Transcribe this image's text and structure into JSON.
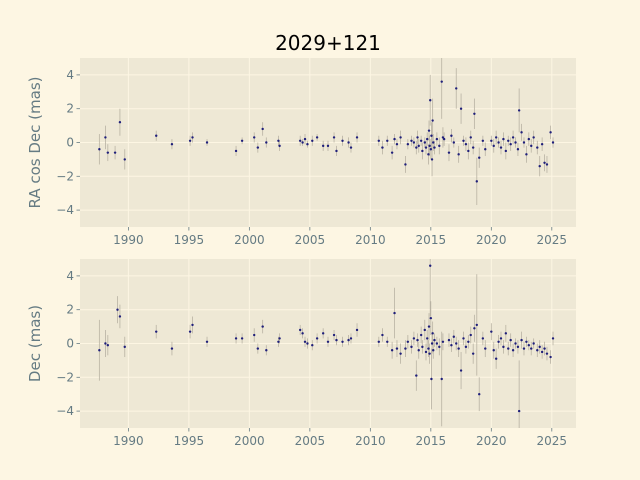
{
  "title": "2029+121",
  "colors": {
    "figure_bg": "#fdf6e3",
    "axes_bg": "#eee8d5",
    "grid": "#fdf6e3",
    "marker": "#1f1f7a",
    "errorbar": "#b8b2a3",
    "tick_text": "#657b83"
  },
  "chart_data": [
    {
      "type": "scatter",
      "ylabel": "RA cos Dec (mas)",
      "xlim": [
        1986.0,
        2027.0
      ],
      "ylim": [
        -5.0,
        5.0
      ],
      "xticks": [
        1990,
        1995,
        2000,
        2005,
        2010,
        2015,
        2020,
        2025
      ],
      "yticks": [
        -4,
        -2,
        0,
        2,
        4
      ],
      "grid": true,
      "points": [
        [
          1987.6,
          -0.4,
          0.9
        ],
        [
          1988.1,
          0.3,
          0.7
        ],
        [
          1988.3,
          -0.6,
          0.5
        ],
        [
          1988.9,
          -0.6,
          0.4
        ],
        [
          1989.3,
          1.2,
          0.8
        ],
        [
          1989.7,
          -1.0,
          0.6
        ],
        [
          1992.3,
          0.4,
          0.3
        ],
        [
          1993.6,
          -0.1,
          0.3
        ],
        [
          1995.1,
          0.1,
          0.3
        ],
        [
          1995.3,
          0.3,
          0.3
        ],
        [
          1996.5,
          0.0,
          0.2
        ],
        [
          1998.9,
          -0.5,
          0.3
        ],
        [
          1999.4,
          0.1,
          0.2
        ],
        [
          2000.4,
          0.3,
          0.3
        ],
        [
          2000.7,
          -0.3,
          0.3
        ],
        [
          2001.1,
          0.8,
          0.4
        ],
        [
          2001.4,
          0.0,
          0.3
        ],
        [
          2002.4,
          0.1,
          0.3
        ],
        [
          2002.5,
          -0.2,
          0.3
        ],
        [
          2004.2,
          0.1,
          0.3
        ],
        [
          2004.4,
          0.0,
          0.2
        ],
        [
          2004.6,
          0.2,
          0.3
        ],
        [
          2004.8,
          -0.1,
          0.2
        ],
        [
          2005.2,
          0.1,
          0.3
        ],
        [
          2005.6,
          0.3,
          0.2
        ],
        [
          2006.1,
          -0.2,
          0.3
        ],
        [
          2006.5,
          -0.2,
          0.3
        ],
        [
          2007.0,
          0.3,
          0.3
        ],
        [
          2007.2,
          -0.5,
          0.3
        ],
        [
          2007.7,
          0.1,
          0.3
        ],
        [
          2008.2,
          0.0,
          0.3
        ],
        [
          2008.4,
          -0.3,
          0.3
        ],
        [
          2008.9,
          0.3,
          0.3
        ],
        [
          2010.7,
          0.1,
          0.3
        ],
        [
          2011.0,
          -0.3,
          0.4
        ],
        [
          2011.4,
          0.1,
          0.3
        ],
        [
          2011.8,
          -0.6,
          0.4
        ],
        [
          2012.0,
          0.2,
          0.3
        ],
        [
          2012.2,
          -0.1,
          0.3
        ],
        [
          2012.5,
          0.3,
          0.4
        ],
        [
          2012.9,
          -1.3,
          0.5
        ],
        [
          2013.1,
          -0.1,
          0.3
        ],
        [
          2013.4,
          0.1,
          0.3
        ],
        [
          2013.6,
          0.0,
          0.3
        ],
        [
          2013.8,
          -0.3,
          0.4
        ],
        [
          2013.9,
          0.3,
          0.4
        ],
        [
          2014.0,
          -0.2,
          0.4
        ],
        [
          2014.2,
          0.1,
          0.3
        ],
        [
          2014.3,
          -0.5,
          0.5
        ],
        [
          2014.5,
          0.0,
          0.3
        ],
        [
          2014.6,
          -0.3,
          0.4
        ],
        [
          2014.7,
          0.2,
          0.4
        ],
        [
          2014.8,
          -0.7,
          0.6
        ],
        [
          2014.85,
          0.7,
          0.6
        ],
        [
          2014.9,
          -0.2,
          0.6
        ],
        [
          2014.95,
          2.5,
          1.5
        ],
        [
          2015.0,
          -0.4,
          0.6
        ],
        [
          2015.05,
          0.4,
          0.8
        ],
        [
          2015.1,
          -1.0,
          1.0
        ],
        [
          2015.15,
          1.3,
          1.3
        ],
        [
          2015.2,
          0.0,
          0.5
        ],
        [
          2015.3,
          -0.3,
          0.4
        ],
        [
          2015.5,
          0.2,
          0.4
        ],
        [
          2015.7,
          -0.2,
          0.5
        ],
        [
          2015.9,
          3.6,
          2.2
        ],
        [
          2016.0,
          0.3,
          0.6
        ],
        [
          2016.1,
          0.2,
          0.4
        ],
        [
          2016.5,
          -0.6,
          0.5
        ],
        [
          2016.7,
          0.4,
          0.4
        ],
        [
          2016.9,
          0.0,
          0.3
        ],
        [
          2017.1,
          3.2,
          1.2
        ],
        [
          2017.3,
          -0.7,
          0.5
        ],
        [
          2017.5,
          2.0,
          0.9
        ],
        [
          2017.7,
          0.1,
          0.3
        ],
        [
          2017.9,
          -0.1,
          0.4
        ],
        [
          2018.1,
          -0.5,
          0.5
        ],
        [
          2018.3,
          0.3,
          0.4
        ],
        [
          2018.5,
          -0.3,
          0.4
        ],
        [
          2018.6,
          1.7,
          0.9
        ],
        [
          2018.8,
          -2.3,
          1.4
        ],
        [
          2019.0,
          -0.9,
          0.6
        ],
        [
          2019.3,
          0.1,
          0.3
        ],
        [
          2019.5,
          -0.4,
          0.4
        ],
        [
          2020.0,
          0.1,
          0.3
        ],
        [
          2020.2,
          -0.2,
          0.4
        ],
        [
          2020.4,
          0.3,
          0.4
        ],
        [
          2020.6,
          0.0,
          0.3
        ],
        [
          2020.8,
          -0.3,
          0.4
        ],
        [
          2021.0,
          0.2,
          0.4
        ],
        [
          2021.2,
          -0.5,
          0.5
        ],
        [
          2021.4,
          0.1,
          0.3
        ],
        [
          2021.6,
          -0.1,
          0.4
        ],
        [
          2021.8,
          0.3,
          0.4
        ],
        [
          2022.0,
          0.0,
          0.3
        ],
        [
          2022.2,
          -0.4,
          0.4
        ],
        [
          2022.3,
          1.9,
          1.3
        ],
        [
          2022.5,
          0.6,
          0.5
        ],
        [
          2022.7,
          0.0,
          0.3
        ],
        [
          2022.9,
          -0.7,
          0.5
        ],
        [
          2023.1,
          0.2,
          0.4
        ],
        [
          2023.3,
          -0.2,
          0.4
        ],
        [
          2023.5,
          0.3,
          0.4
        ],
        [
          2023.8,
          -0.3,
          0.4
        ],
        [
          2024.0,
          -1.4,
          0.6
        ],
        [
          2024.2,
          -0.1,
          0.4
        ],
        [
          2024.4,
          -1.2,
          0.5
        ],
        [
          2024.6,
          -1.3,
          0.5
        ],
        [
          2024.9,
          0.6,
          0.4
        ],
        [
          2025.1,
          0.0,
          0.3
        ]
      ]
    },
    {
      "type": "scatter",
      "ylabel": "Dec (mas)",
      "xlim": [
        1986.0,
        2027.0
      ],
      "ylim": [
        -5.0,
        5.0
      ],
      "xticks": [
        1990,
        1995,
        2000,
        2005,
        2010,
        2015,
        2020,
        2025
      ],
      "yticks": [
        -4,
        -2,
        0,
        2,
        4
      ],
      "grid": true,
      "points": [
        [
          1987.6,
          -0.4,
          1.8
        ],
        [
          1988.1,
          0.0,
          0.8
        ],
        [
          1988.3,
          -0.1,
          0.6
        ],
        [
          1989.1,
          2.0,
          0.8
        ],
        [
          1989.3,
          1.6,
          0.7
        ],
        [
          1989.7,
          -0.2,
          0.6
        ],
        [
          1992.3,
          0.7,
          0.4
        ],
        [
          1993.6,
          -0.3,
          0.4
        ],
        [
          1995.1,
          0.7,
          0.4
        ],
        [
          1995.3,
          1.1,
          0.5
        ],
        [
          1996.5,
          0.1,
          0.3
        ],
        [
          1998.9,
          0.3,
          0.3
        ],
        [
          1999.4,
          0.3,
          0.3
        ],
        [
          2000.4,
          0.5,
          0.4
        ],
        [
          2000.7,
          -0.3,
          0.3
        ],
        [
          2001.1,
          1.0,
          0.4
        ],
        [
          2001.4,
          -0.4,
          0.3
        ],
        [
          2002.4,
          0.1,
          0.3
        ],
        [
          2002.5,
          0.3,
          0.3
        ],
        [
          2004.2,
          0.8,
          0.3
        ],
        [
          2004.4,
          0.6,
          0.3
        ],
        [
          2004.6,
          0.1,
          0.3
        ],
        [
          2004.8,
          0.0,
          0.3
        ],
        [
          2005.2,
          -0.1,
          0.3
        ],
        [
          2005.6,
          0.3,
          0.3
        ],
        [
          2006.1,
          0.6,
          0.3
        ],
        [
          2006.5,
          0.1,
          0.3
        ],
        [
          2007.0,
          0.5,
          0.3
        ],
        [
          2007.2,
          0.2,
          0.3
        ],
        [
          2007.7,
          0.1,
          0.3
        ],
        [
          2008.2,
          0.2,
          0.3
        ],
        [
          2008.4,
          0.3,
          0.3
        ],
        [
          2008.9,
          0.8,
          0.4
        ],
        [
          2010.7,
          0.1,
          0.3
        ],
        [
          2011.0,
          0.5,
          0.4
        ],
        [
          2011.4,
          0.1,
          0.3
        ],
        [
          2011.8,
          -0.4,
          0.5
        ],
        [
          2012.0,
          1.8,
          1.5
        ],
        [
          2012.2,
          -0.3,
          0.5
        ],
        [
          2012.5,
          -0.6,
          0.6
        ],
        [
          2012.9,
          -0.3,
          0.5
        ],
        [
          2013.1,
          0.1,
          0.4
        ],
        [
          2013.4,
          -0.2,
          0.4
        ],
        [
          2013.6,
          0.3,
          0.4
        ],
        [
          2013.8,
          -1.9,
          0.9
        ],
        [
          2013.9,
          0.2,
          0.4
        ],
        [
          2014.0,
          -0.4,
          0.5
        ],
        [
          2014.2,
          0.5,
          0.5
        ],
        [
          2014.3,
          -0.2,
          0.4
        ],
        [
          2014.5,
          0.8,
          0.6
        ],
        [
          2014.6,
          -0.5,
          0.5
        ],
        [
          2014.7,
          0.3,
          0.5
        ],
        [
          2014.8,
          -0.3,
          0.5
        ],
        [
          2014.85,
          1.0,
          0.8
        ],
        [
          2014.9,
          -0.6,
          0.6
        ],
        [
          2014.95,
          4.6,
          3.0
        ],
        [
          2015.0,
          1.5,
          1.0
        ],
        [
          2015.05,
          -2.1,
          1.8
        ],
        [
          2015.1,
          0.0,
          0.6
        ],
        [
          2015.15,
          0.6,
          0.7
        ],
        [
          2015.2,
          -0.4,
          0.5
        ],
        [
          2015.3,
          0.2,
          0.4
        ],
        [
          2015.5,
          0.0,
          0.4
        ],
        [
          2015.7,
          -0.2,
          0.5
        ],
        [
          2015.9,
          -2.1,
          2.8
        ],
        [
          2016.0,
          0.1,
          0.5
        ],
        [
          2016.5,
          0.2,
          0.4
        ],
        [
          2016.7,
          -0.1,
          0.4
        ],
        [
          2016.9,
          0.4,
          0.4
        ],
        [
          2017.1,
          0.0,
          0.4
        ],
        [
          2017.3,
          -0.3,
          0.5
        ],
        [
          2017.5,
          -1.6,
          1.1
        ],
        [
          2017.7,
          0.3,
          0.4
        ],
        [
          2017.9,
          -0.2,
          0.4
        ],
        [
          2018.1,
          0.1,
          0.4
        ],
        [
          2018.3,
          0.5,
          0.5
        ],
        [
          2018.5,
          -0.6,
          0.6
        ],
        [
          2018.6,
          0.9,
          0.8
        ],
        [
          2018.8,
          1.1,
          3.0
        ],
        [
          2019.0,
          -3.0,
          1.0
        ],
        [
          2019.3,
          0.3,
          0.4
        ],
        [
          2019.5,
          -0.3,
          0.5
        ],
        [
          2020.0,
          0.7,
          0.5
        ],
        [
          2020.2,
          -0.4,
          0.5
        ],
        [
          2020.4,
          -0.9,
          0.6
        ],
        [
          2020.6,
          0.1,
          0.4
        ],
        [
          2020.8,
          0.3,
          0.4
        ],
        [
          2021.0,
          -0.2,
          0.4
        ],
        [
          2021.2,
          0.6,
          0.5
        ],
        [
          2021.4,
          -0.3,
          0.4
        ],
        [
          2021.6,
          0.2,
          0.4
        ],
        [
          2021.8,
          -0.4,
          0.4
        ],
        [
          2022.0,
          0.0,
          0.3
        ],
        [
          2022.2,
          -0.2,
          0.4
        ],
        [
          2022.3,
          -4.0,
          3.0
        ],
        [
          2022.5,
          0.2,
          0.5
        ],
        [
          2022.7,
          -0.3,
          0.4
        ],
        [
          2022.9,
          0.1,
          0.3
        ],
        [
          2023.1,
          -0.1,
          0.3
        ],
        [
          2023.3,
          -0.3,
          0.4
        ],
        [
          2023.5,
          0.0,
          0.3
        ],
        [
          2023.8,
          -0.4,
          0.4
        ],
        [
          2024.0,
          -0.2,
          0.4
        ],
        [
          2024.2,
          -0.5,
          0.4
        ],
        [
          2024.4,
          -0.3,
          0.4
        ],
        [
          2024.6,
          -0.6,
          0.4
        ],
        [
          2024.9,
          -0.8,
          0.4
        ],
        [
          2025.1,
          0.3,
          0.4
        ]
      ]
    }
  ]
}
